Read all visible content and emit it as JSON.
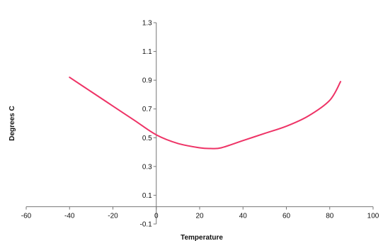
{
  "chart_data": {
    "type": "line",
    "title": "",
    "xlabel": "Temperature",
    "ylabel": "Degrees C",
    "xlim": [
      -60,
      100
    ],
    "ylim": [
      -0.1,
      1.3
    ],
    "xticks": [
      -60,
      -40,
      -20,
      0,
      20,
      40,
      60,
      80,
      100
    ],
    "yticks": [
      -0.1,
      0.1,
      0.3,
      0.5,
      0.7,
      0.9,
      1.1,
      1.3
    ],
    "xtick_labels": [
      "-60",
      "-40",
      "-20",
      "0",
      "20",
      "40",
      "60",
      "80",
      "100"
    ],
    "ytick_labels": [
      "-0.1",
      "0.1",
      "0.3",
      "0.5",
      "0.7",
      "0.9",
      "1.1",
      "1.3"
    ],
    "grid": false,
    "legend": "none",
    "series": [
      {
        "color": "#ee3366",
        "x": [
          -40,
          -30,
          -20,
          -10,
          0,
          10,
          20,
          25,
          30,
          40,
          50,
          60,
          70,
          80,
          85
        ],
        "y": [
          0.92,
          0.82,
          0.72,
          0.62,
          0.52,
          0.46,
          0.43,
          0.425,
          0.43,
          0.48,
          0.53,
          0.58,
          0.65,
          0.76,
          0.89
        ]
      }
    ]
  }
}
